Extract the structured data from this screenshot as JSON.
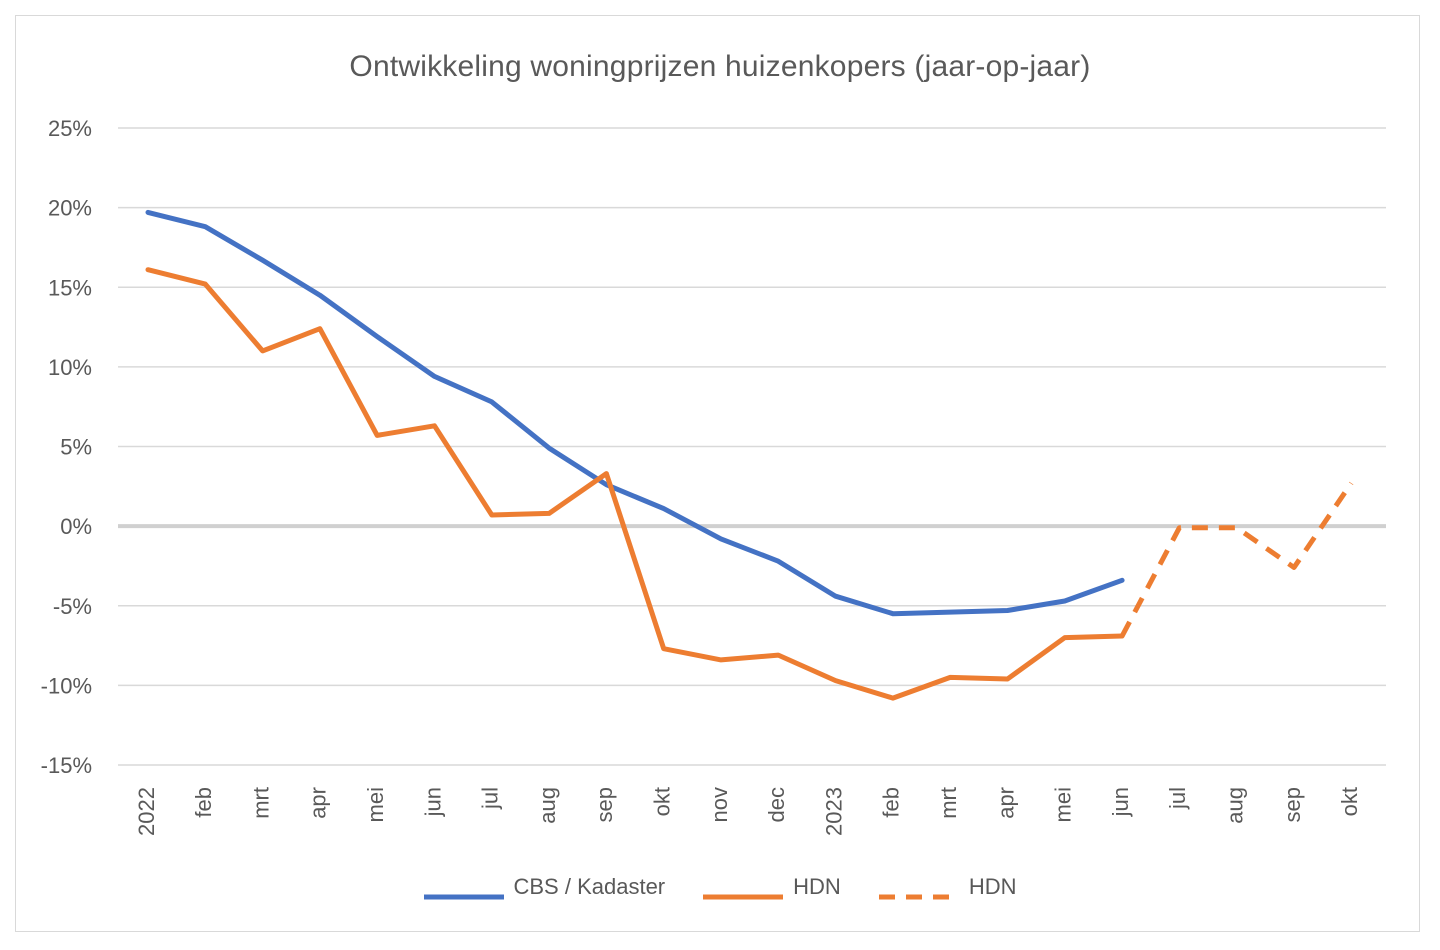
{
  "chart_data": {
    "type": "line",
    "title": "Ontwikkeling woningprijzen huizenkopers (jaar-op-jaar)",
    "xlabel": "",
    "ylabel": "",
    "categories": [
      "2022",
      "feb",
      "mrt",
      "apr",
      "mei",
      "jun",
      "jul",
      "aug",
      "sep",
      "okt",
      "nov",
      "dec",
      "2023",
      "feb",
      "mrt",
      "apr",
      "mei",
      "jun",
      "jul",
      "aug",
      "sep",
      "okt"
    ],
    "yticks": [
      "25%",
      "20%",
      "15%",
      "10%",
      "5%",
      "0%",
      "-5%",
      "-10%",
      "-15%"
    ],
    "ylim": [
      -15,
      25
    ],
    "grid": true,
    "legend_position": "bottom",
    "series": [
      {
        "name": "CBS / Kadaster",
        "color": "#4472c4",
        "style": "solid",
        "values": [
          19.7,
          18.8,
          16.7,
          14.5,
          11.9,
          9.4,
          7.8,
          4.9,
          2.6,
          1.1,
          -0.8,
          -2.2,
          -4.4,
          -5.5,
          -5.4,
          -5.3,
          -4.7,
          -3.4,
          null,
          null,
          null,
          null
        ]
      },
      {
        "name": "HDN",
        "color": "#ed7d31",
        "style": "solid",
        "values": [
          16.1,
          15.2,
          11.0,
          12.4,
          5.7,
          6.3,
          0.7,
          0.8,
          3.3,
          -7.7,
          -8.4,
          -8.1,
          -9.7,
          -10.8,
          -9.5,
          -9.6,
          -7.0,
          -6.9,
          null,
          null,
          null,
          null
        ]
      },
      {
        "name": "HDN",
        "color": "#ed7d31",
        "style": "dashed",
        "values": [
          null,
          null,
          null,
          null,
          null,
          null,
          null,
          null,
          null,
          null,
          null,
          null,
          null,
          null,
          null,
          null,
          null,
          -6.9,
          -0.1,
          -0.1,
          -2.6,
          2.7
        ]
      }
    ]
  }
}
